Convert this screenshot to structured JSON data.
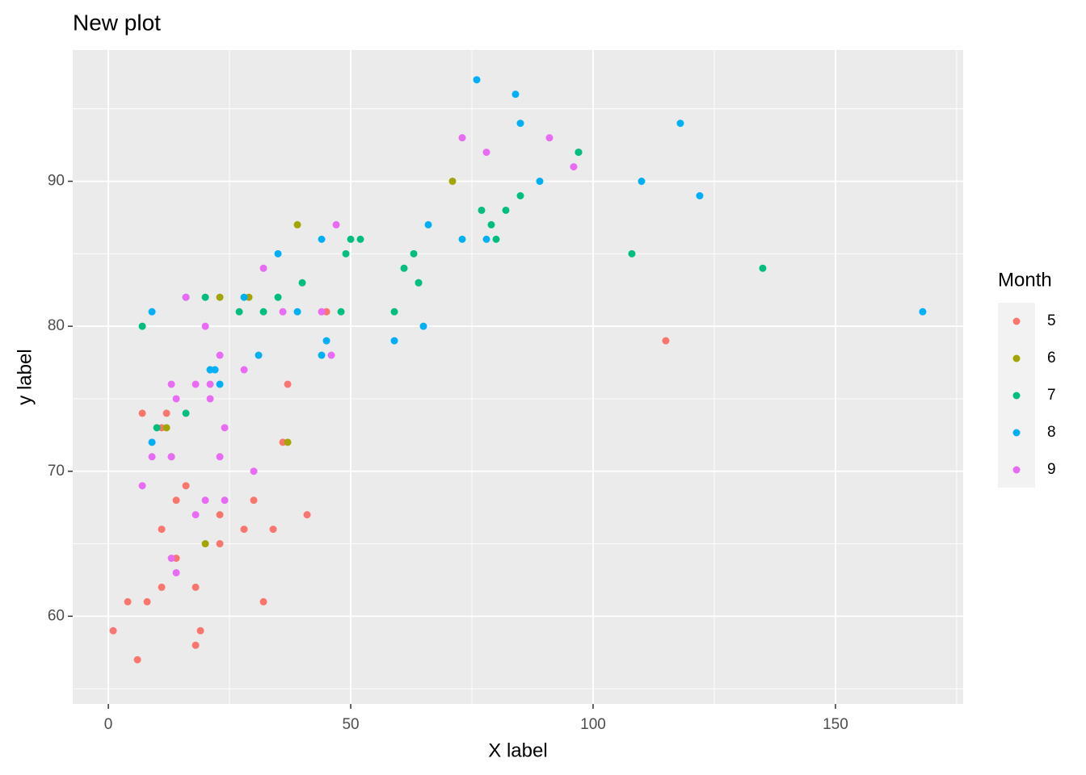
{
  "chart_data": {
    "type": "scatter",
    "title": "New plot",
    "x_label": "X label",
    "y_label": "y label",
    "legend_title": "Month",
    "legend_position": "right",
    "grid": true,
    "xlim": [
      -7.35,
      176.35
    ],
    "ylim": [
      53.95,
      99.05
    ],
    "xticks": [
      0,
      50,
      100,
      150
    ],
    "yticks": [
      60,
      70,
      80,
      90
    ],
    "series": [
      {
        "name": "5",
        "color": "#F8766D",
        "x": [
          41,
          36,
          12,
          18,
          28,
          23,
          19,
          8,
          7,
          16,
          11,
          14,
          18,
          14,
          34,
          6,
          30,
          11,
          1,
          11,
          4,
          32,
          23,
          45,
          115,
          37
        ],
        "values": [
          67,
          72,
          74,
          62,
          66,
          65,
          59,
          61,
          74,
          69,
          66,
          68,
          58,
          64,
          66,
          57,
          68,
          62,
          59,
          73,
          61,
          61,
          67,
          81,
          79,
          76
        ]
      },
      {
        "name": "6",
        "color": "#A3A500",
        "x": [
          29,
          71,
          39,
          23,
          21,
          37,
          20,
          12,
          13
        ],
        "values": [
          82,
          90,
          87,
          82,
          77,
          72,
          65,
          73,
          71
        ]
      },
      {
        "name": "7",
        "color": "#00BF7D",
        "x": [
          135,
          49,
          32,
          64,
          40,
          77,
          97,
          97,
          85,
          10,
          27,
          7,
          48,
          35,
          61,
          79,
          63,
          16,
          80,
          108,
          20,
          52,
          82,
          50,
          64,
          59
        ],
        "values": [
          84,
          85,
          81,
          83,
          83,
          88,
          92,
          92,
          89,
          73,
          81,
          80,
          81,
          82,
          84,
          87,
          85,
          74,
          86,
          85,
          82,
          86,
          88,
          86,
          83,
          81
        ]
      },
      {
        "name": "8",
        "color": "#00B0F6",
        "x": [
          39,
          9,
          16,
          78,
          35,
          66,
          122,
          89,
          110,
          44,
          28,
          65,
          22,
          59,
          23,
          31,
          44,
          21,
          9,
          45,
          168,
          73,
          76,
          118,
          84,
          85
        ],
        "values": [
          81,
          81,
          82,
          86,
          85,
          87,
          89,
          90,
          90,
          86,
          82,
          80,
          77,
          79,
          76,
          78,
          78,
          77,
          72,
          79,
          81,
          86,
          97,
          94,
          96,
          94
        ]
      },
      {
        "name": "9",
        "color": "#E76BF3",
        "x": [
          96,
          78,
          73,
          91,
          47,
          32,
          20,
          23,
          21,
          24,
          44,
          21,
          28,
          9,
          13,
          46,
          18,
          13,
          24,
          16,
          13,
          23,
          36,
          7,
          14,
          30,
          14,
          18,
          20
        ],
        "values": [
          91,
          92,
          93,
          93,
          87,
          84,
          80,
          78,
          75,
          73,
          81,
          76,
          77,
          71,
          71,
          78,
          67,
          76,
          68,
          82,
          64,
          71,
          81,
          69,
          63,
          70,
          75,
          76,
          68
        ]
      }
    ]
  }
}
